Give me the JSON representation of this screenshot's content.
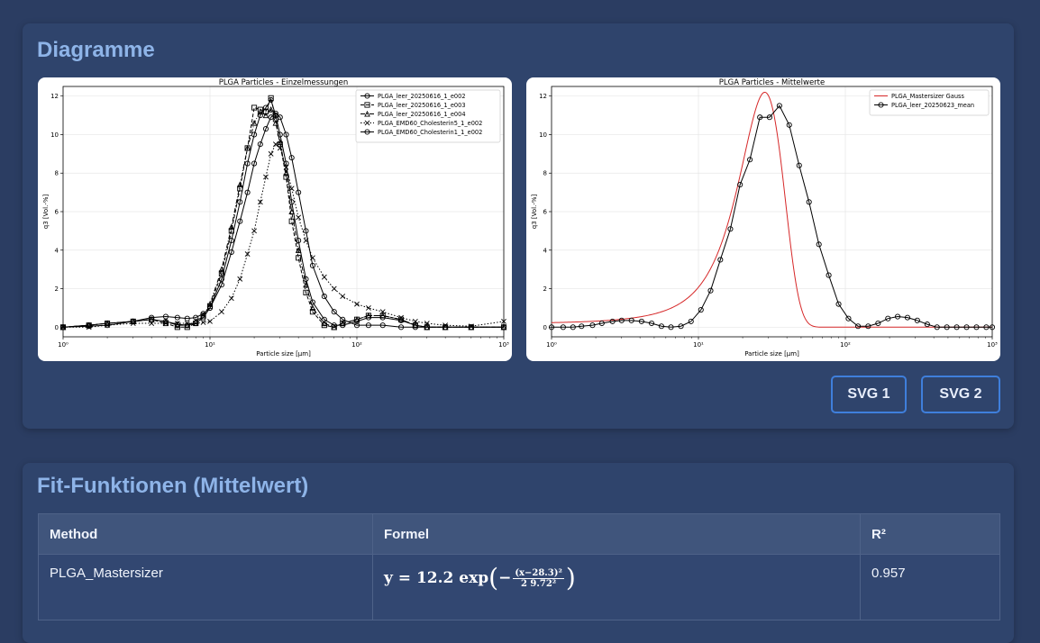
{
  "diagrams": {
    "title": "Diagramme",
    "buttons": [
      "SVG 1",
      "SVG 2"
    ]
  },
  "fit": {
    "title": "Fit-Funktionen (Mittelwert)",
    "headers": [
      "Method",
      "Formel",
      "R²"
    ],
    "rows": [
      {
        "method": "PLGA_Mastersizer",
        "formula": {
          "lhs": "y = 12.2 exp",
          "num": "(x−28.3)²",
          "den": "2 9.72²"
        },
        "r2": "0.957"
      }
    ]
  },
  "chart_data": [
    {
      "type": "line",
      "title": "PLGA Particles - Einzelmessungen",
      "xlabel": "Particle size [μm]",
      "ylabel": "q3 [Vol.-%]",
      "xscale": "log",
      "xlim": [
        1,
        1000
      ],
      "ylim": [
        -0.5,
        12.5
      ],
      "yticks": [
        0,
        2,
        4,
        6,
        8,
        10,
        12
      ],
      "xticks": [
        "10⁰",
        "10¹",
        "10²",
        "10³"
      ],
      "grid": true,
      "legend_position": "top-right",
      "series": [
        {
          "name": "PLGA_leer_20250616_1_e002",
          "marker": "o",
          "dash": "solid",
          "x": [
            1,
            1.5,
            2,
            3,
            4,
            5,
            6,
            7,
            8,
            9,
            10,
            12,
            14,
            16,
            18,
            20,
            22,
            24,
            26,
            28,
            30,
            33,
            36,
            40,
            45,
            50,
            60,
            70,
            80,
            100,
            120,
            150,
            200,
            250,
            300,
            400,
            600,
            1000
          ],
          "y": [
            0,
            0.1,
            0.2,
            0.3,
            0.4,
            0.3,
            0.15,
            0.1,
            0.2,
            0.5,
            1.0,
            2.5,
            4.5,
            6.5,
            8.5,
            10.0,
            11.0,
            11.4,
            11.8,
            11.0,
            10.0,
            8.5,
            6.5,
            4.5,
            2.5,
            1.3,
            0.4,
            0.1,
            0.1,
            0.3,
            0.5,
            0.5,
            0.35,
            0.1,
            0,
            0,
            0,
            0
          ]
        },
        {
          "name": "PLGA_leer_20250616_1_e003",
          "marker": "s",
          "dash": "dashed",
          "x": [
            1,
            1.5,
            2,
            3,
            4,
            5,
            6,
            7,
            8,
            9,
            10,
            12,
            14,
            16,
            18,
            20,
            22,
            24,
            26,
            28,
            30,
            33,
            36,
            40,
            45,
            50,
            60,
            70,
            80,
            100,
            120,
            150,
            200,
            250,
            300,
            400,
            600,
            1000
          ],
          "y": [
            0,
            0.1,
            0.2,
            0.3,
            0.4,
            0.2,
            0.0,
            0.0,
            0.2,
            0.6,
            1.1,
            2.8,
            5.0,
            7.2,
            9.3,
            11.4,
            11.3,
            11.2,
            11.9,
            10.8,
            9.5,
            7.8,
            5.5,
            3.6,
            1.8,
            0.8,
            0.1,
            0.0,
            0.2,
            0.4,
            0.6,
            0.6,
            0.4,
            0.1,
            0,
            0,
            0,
            0
          ]
        },
        {
          "name": "PLGA_leer_20250616_1_e004",
          "marker": "^",
          "dash": "dashdot",
          "x": [
            1,
            1.5,
            2,
            3,
            4,
            5,
            6,
            7,
            8,
            9,
            10,
            12,
            14,
            16,
            18,
            20,
            22,
            24,
            26,
            28,
            30,
            33,
            36,
            40,
            45,
            50,
            60,
            70,
            80,
            100,
            120,
            150,
            200,
            250,
            300,
            400,
            600,
            1000
          ],
          "y": [
            0,
            0.1,
            0.2,
            0.3,
            0.4,
            0.3,
            0.1,
            0.1,
            0.3,
            0.6,
            1.2,
            3.0,
            5.2,
            7.4,
            9.3,
            10.6,
            11.2,
            11.0,
            11.3,
            10.6,
            9.6,
            8.0,
            6.0,
            4.0,
            2.2,
            1.0,
            0.2,
            0.0,
            0.2,
            0.4,
            0.6,
            0.6,
            0.4,
            0.1,
            0,
            0,
            0,
            0
          ]
        },
        {
          "name": "PLGA_EMD60_Cholesterin5_1_e002",
          "marker": "x",
          "dash": "dotted",
          "x": [
            1,
            1.5,
            2,
            3,
            4,
            5,
            6,
            7,
            8,
            9,
            10,
            12,
            14,
            16,
            18,
            20,
            22,
            24,
            26,
            28,
            30,
            33,
            36,
            40,
            45,
            50,
            60,
            70,
            80,
            100,
            120,
            150,
            200,
            250,
            300,
            400,
            600,
            1000
          ],
          "y": [
            0,
            0.0,
            0.1,
            0.2,
            0.2,
            0.2,
            0.2,
            0.2,
            0.2,
            0.25,
            0.3,
            0.8,
            1.5,
            2.5,
            3.8,
            5.0,
            6.5,
            7.8,
            9.0,
            9.5,
            9.3,
            8.3,
            7.2,
            5.7,
            4.5,
            3.6,
            2.6,
            2.0,
            1.6,
            1.2,
            1.0,
            0.8,
            0.5,
            0.3,
            0.2,
            0.1,
            0.05,
            0.3
          ]
        },
        {
          "name": "PLGA_EMD60_Cholesterin1_1_e002",
          "marker": "o",
          "dash": "solid",
          "x": [
            1,
            1.5,
            2,
            3,
            4,
            5,
            6,
            7,
            8,
            9,
            10,
            12,
            14,
            16,
            18,
            20,
            22,
            24,
            26,
            28,
            30,
            33,
            36,
            40,
            45,
            50,
            60,
            70,
            80,
            100,
            120,
            150,
            200,
            250,
            300,
            400,
            600,
            1000
          ],
          "y": [
            0,
            0.05,
            0.1,
            0.3,
            0.5,
            0.55,
            0.5,
            0.45,
            0.5,
            0.7,
            1.0,
            2.2,
            3.9,
            5.5,
            7.0,
            8.5,
            9.5,
            10.3,
            10.9,
            11.1,
            10.9,
            10.0,
            8.8,
            7.0,
            5.0,
            3.2,
            1.6,
            0.8,
            0.4,
            0.1,
            0.1,
            0.1,
            0.0,
            0,
            0,
            0,
            0,
            0
          ]
        }
      ]
    },
    {
      "type": "line",
      "title": "PLGA Particles - Mittelwerte",
      "xlabel": "Particle size [μm]",
      "ylabel": "q3 [Vol.-%]",
      "xscale": "log",
      "xlim": [
        1,
        1000
      ],
      "ylim": [
        -0.5,
        12.5
      ],
      "yticks": [
        0,
        2,
        4,
        6,
        8,
        10,
        12
      ],
      "xticks": [
        "10⁰",
        "10¹",
        "10²",
        "10³"
      ],
      "grid": true,
      "legend_position": "top-right",
      "series": [
        {
          "name": "PLGA_Mastersizer Gauss",
          "color": "#d62728",
          "marker": "none",
          "dash": "solid",
          "fit": {
            "a": 12.2,
            "mu": 28.3,
            "sigma": 9.72
          }
        },
        {
          "name": "PLGA_leer_20250623_mean",
          "color": "#000000",
          "marker": "o",
          "dash": "solid",
          "x": [
            1,
            1.2,
            1.4,
            1.6,
            1.9,
            2.2,
            2.6,
            3.0,
            3.5,
            4.1,
            4.8,
            5.6,
            6.5,
            7.6,
            8.9,
            10.4,
            12.1,
            14.1,
            16.5,
            19.2,
            22.4,
            26.2,
            30.5,
            35.6,
            41.5,
            48.5,
            56.6,
            66.1,
            77.1,
            90.0,
            105,
            122,
            143,
            167,
            195,
            227,
            265,
            309,
            361,
            421,
            491,
            573,
            669,
            781,
            911,
            1000
          ],
          "y": [
            0,
            0,
            0,
            0.05,
            0.1,
            0.2,
            0.3,
            0.35,
            0.35,
            0.3,
            0.2,
            0.05,
            0,
            0.05,
            0.3,
            0.9,
            1.9,
            3.5,
            5.1,
            7.4,
            8.7,
            10.9,
            10.9,
            11.5,
            10.5,
            8.4,
            6.5,
            4.3,
            2.7,
            1.2,
            0.45,
            0.05,
            0.05,
            0.2,
            0.45,
            0.55,
            0.5,
            0.35,
            0.15,
            0.0,
            0,
            0,
            0,
            0,
            0,
            0
          ]
        }
      ]
    }
  ]
}
